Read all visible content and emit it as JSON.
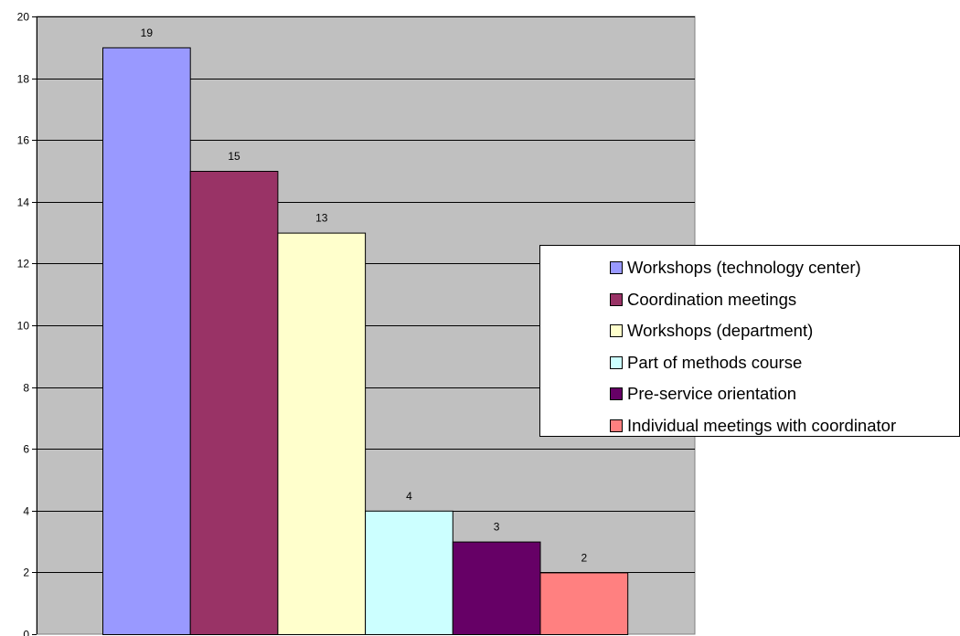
{
  "chart_data": {
    "type": "bar",
    "categories": [
      "Workshops (technology center)",
      "Coordination meetings",
      "Workshops (department)",
      "Part of methods course",
      "Pre-service orientation",
      "Individual meetings with coordinator"
    ],
    "values": [
      19,
      15,
      13,
      4,
      3,
      2
    ],
    "colors": [
      "#9999FF",
      "#993366",
      "#FFFFCC",
      "#CCFFFF",
      "#660066",
      "#FF8080"
    ],
    "ylim": [
      0,
      20
    ],
    "yticks": [
      0,
      2,
      4,
      6,
      8,
      10,
      12,
      14,
      16,
      18,
      20
    ],
    "grid": true,
    "plot_background": "#C0C0C0",
    "legend_position": "right"
  }
}
